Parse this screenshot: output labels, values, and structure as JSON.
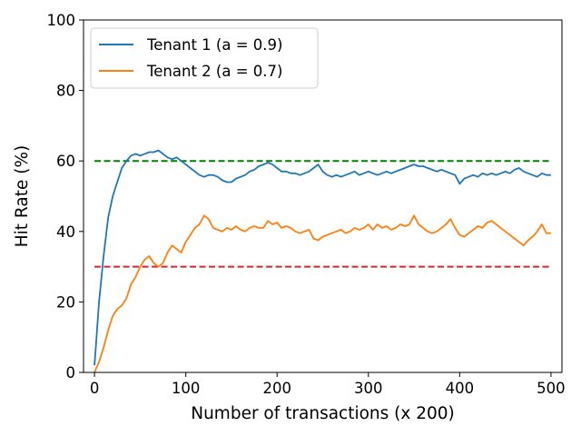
{
  "chart_data": {
    "type": "line",
    "title": "",
    "xlabel": "Number of transactions (x 200)",
    "ylabel": "Hit Rate (%)",
    "xlim": [
      -12,
      512
    ],
    "ylim": [
      0,
      100
    ],
    "x_ticks": [
      0,
      100,
      200,
      300,
      400,
      500
    ],
    "y_ticks": [
      0,
      20,
      40,
      60,
      80,
      100
    ],
    "grid": false,
    "legend_position": "upper-left",
    "series": [
      {
        "name": "Tenant 1 (a = 0.9)",
        "color": "#1f77b4",
        "x": [
          0,
          5,
          10,
          15,
          20,
          25,
          30,
          35,
          40,
          45,
          50,
          55,
          60,
          65,
          70,
          75,
          80,
          85,
          90,
          95,
          100,
          105,
          110,
          115,
          120,
          125,
          130,
          135,
          140,
          145,
          150,
          155,
          160,
          165,
          170,
          175,
          180,
          185,
          190,
          195,
          200,
          205,
          210,
          215,
          220,
          225,
          230,
          235,
          240,
          245,
          250,
          255,
          260,
          265,
          270,
          275,
          280,
          285,
          290,
          295,
          300,
          305,
          310,
          315,
          320,
          325,
          330,
          335,
          340,
          345,
          350,
          355,
          360,
          365,
          370,
          375,
          380,
          385,
          390,
          395,
          400,
          405,
          410,
          415,
          420,
          425,
          430,
          435,
          440,
          445,
          450,
          455,
          460,
          465,
          470,
          475,
          480,
          485,
          490,
          495,
          500
        ],
        "y": [
          2,
          20,
          33,
          44,
          50,
          54,
          58,
          60,
          61.5,
          62,
          61.5,
          62,
          62.5,
          62.5,
          63,
          62,
          61,
          60.5,
          61,
          60,
          59,
          58,
          57,
          56,
          55.5,
          56,
          56,
          55.5,
          54.5,
          54,
          54,
          55,
          55.5,
          56,
          57,
          57.5,
          58.5,
          59,
          59.5,
          59,
          58,
          57,
          57,
          56.5,
          56.5,
          56,
          56.5,
          57,
          58,
          59,
          57,
          56,
          55.5,
          56,
          55.5,
          56,
          56.5,
          57,
          56,
          56.5,
          57,
          56.5,
          56,
          56.5,
          57,
          56.5,
          57,
          57.5,
          58,
          58.5,
          59,
          58.5,
          58.5,
          58,
          57.5,
          57,
          57.5,
          57,
          56.5,
          56,
          53.5,
          55,
          55.5,
          56,
          55.5,
          56.5,
          56,
          56.5,
          56,
          56.5,
          57,
          56.5,
          57.5,
          58,
          57,
          56.5,
          56,
          55.5,
          56.5,
          56,
          56
        ]
      },
      {
        "name": "Tenant 2 (a = 0.7)",
        "color": "#ff7f0e",
        "x": [
          0,
          5,
          10,
          15,
          20,
          25,
          30,
          35,
          40,
          45,
          50,
          55,
          60,
          65,
          70,
          75,
          80,
          85,
          90,
          95,
          100,
          105,
          110,
          115,
          120,
          125,
          130,
          135,
          140,
          145,
          150,
          155,
          160,
          165,
          170,
          175,
          180,
          185,
          190,
          195,
          200,
          205,
          210,
          215,
          220,
          225,
          230,
          235,
          240,
          245,
          250,
          255,
          260,
          265,
          270,
          275,
          280,
          285,
          290,
          295,
          300,
          305,
          310,
          315,
          320,
          325,
          330,
          335,
          340,
          345,
          350,
          355,
          360,
          365,
          370,
          375,
          380,
          385,
          390,
          395,
          400,
          405,
          410,
          415,
          420,
          425,
          430,
          435,
          440,
          445,
          450,
          455,
          460,
          465,
          470,
          475,
          480,
          485,
          490,
          495,
          500
        ],
        "y": [
          0,
          3,
          7,
          12,
          16,
          18,
          19,
          21,
          25,
          27,
          30,
          32,
          33,
          31,
          30,
          31,
          34,
          36,
          35,
          34,
          37,
          39,
          41,
          42,
          44.5,
          43.5,
          41,
          40.5,
          40,
          41,
          40.5,
          41.5,
          40.5,
          40,
          41,
          41.5,
          41,
          41,
          43,
          42,
          42.5,
          41,
          41.5,
          41,
          40,
          39.5,
          40,
          40.5,
          38,
          37.5,
          38.5,
          39,
          39.5,
          40,
          40.5,
          39.5,
          40,
          41,
          40.5,
          41,
          42,
          40.5,
          42,
          41,
          41.5,
          40.5,
          41,
          42,
          41.5,
          42,
          44.5,
          42,
          41,
          40,
          39.5,
          40,
          41,
          42,
          43.5,
          41,
          39,
          38.5,
          39.5,
          40.5,
          41.5,
          41,
          42.5,
          43,
          42,
          41,
          40,
          39,
          38,
          37,
          36,
          37.5,
          38.5,
          40,
          42,
          39.5,
          39.5
        ]
      }
    ],
    "reference_lines": [
      {
        "y": 60,
        "x_start": 0,
        "x_end": 500,
        "color": "#008000",
        "style": "dashed"
      },
      {
        "y": 30,
        "x_start": 0,
        "x_end": 500,
        "color": "#d62728",
        "style": "dashed"
      }
    ]
  }
}
